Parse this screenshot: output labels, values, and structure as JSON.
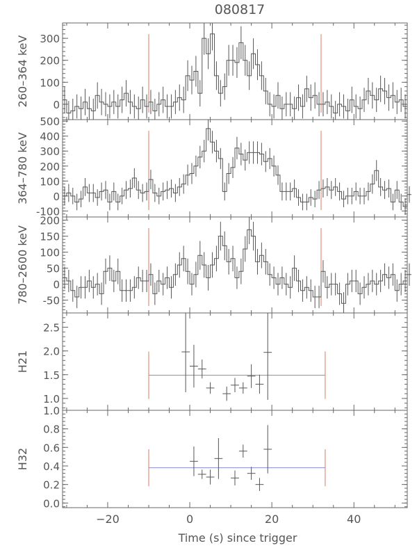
{
  "chart_data": {
    "title": "080817",
    "xlabel": "Time (s) since trigger",
    "xlim": [
      -31,
      53
    ],
    "xticks": [
      -20,
      0,
      20,
      40
    ],
    "panels": [
      {
        "id": "p1",
        "type": "step",
        "ylabel": "260–364 keV",
        "ylim": [
          -70,
          370
        ],
        "yticks": [
          0,
          100,
          200,
          300
        ],
        "t0": -31,
        "dt": 1,
        "values": [
          20,
          -40,
          -30,
          -10,
          -20,
          10,
          -20,
          -30,
          40,
          10,
          0,
          -10,
          10,
          -10,
          20,
          50,
          10,
          -10,
          -20,
          20,
          -10,
          10,
          -30,
          0,
          20,
          -10,
          -10,
          10,
          30,
          20,
          130,
          110,
          150,
          50,
          300,
          230,
          320,
          130,
          50,
          80,
          200,
          200,
          190,
          280,
          200,
          130,
          230,
          180,
          130,
          60,
          0,
          -10,
          40,
          -20,
          0,
          0,
          -20,
          30,
          -10,
          70,
          30,
          40,
          0,
          0,
          10,
          -10,
          -40,
          0,
          -10,
          -30,
          20,
          -10,
          -20,
          20,
          60,
          40,
          20,
          70,
          60,
          30,
          40,
          10,
          20,
          -10
        ],
        "errors": [
          60,
          55,
          55,
          55,
          55,
          60,
          55,
          55,
          60,
          60,
          55,
          55,
          55,
          55,
          60,
          60,
          55,
          55,
          55,
          60,
          55,
          55,
          55,
          55,
          60,
          55,
          55,
          55,
          60,
          60,
          70,
          65,
          70,
          60,
          75,
          70,
          75,
          65,
          60,
          60,
          70,
          70,
          70,
          75,
          70,
          65,
          70,
          70,
          65,
          60,
          55,
          55,
          60,
          55,
          55,
          55,
          55,
          60,
          55,
          60,
          60,
          60,
          55,
          55,
          55,
          55,
          55,
          55,
          55,
          55,
          60,
          55,
          55,
          55,
          60,
          60,
          55,
          60,
          60,
          60,
          60,
          55,
          55,
          55
        ],
        "markers": [
          -10,
          32
        ]
      },
      {
        "id": "p2",
        "type": "step",
        "ylabel": "364–780 keV",
        "ylim": [
          -140,
          510
        ],
        "yticks": [
          -100,
          0,
          100,
          200,
          300,
          400,
          500
        ],
        "t0": -31,
        "dt": 1,
        "values": [
          0,
          20,
          0,
          -40,
          -20,
          60,
          20,
          20,
          -10,
          30,
          40,
          -40,
          30,
          -40,
          0,
          40,
          50,
          120,
          40,
          20,
          30,
          110,
          20,
          0,
          30,
          40,
          50,
          20,
          60,
          80,
          140,
          150,
          200,
          260,
          300,
          450,
          360,
          300,
          250,
          30,
          150,
          190,
          320,
          280,
          240,
          290,
          290,
          290,
          280,
          230,
          250,
          200,
          140,
          30,
          30,
          30,
          50,
          -10,
          -40,
          -40,
          -10,
          -20,
          40,
          50,
          60,
          40,
          60,
          30,
          -20,
          0,
          0,
          30,
          0,
          0,
          30,
          80,
          170,
          60,
          40,
          50,
          -40,
          40,
          -40,
          -70,
          10
        ],
        "errors": [
          60,
          60,
          55,
          55,
          55,
          60,
          60,
          60,
          55,
          60,
          60,
          55,
          60,
          55,
          55,
          60,
          60,
          65,
          60,
          60,
          60,
          65,
          60,
          55,
          60,
          60,
          60,
          60,
          60,
          65,
          70,
          70,
          70,
          75,
          75,
          80,
          75,
          75,
          70,
          60,
          70,
          70,
          75,
          75,
          70,
          75,
          75,
          75,
          75,
          70,
          70,
          70,
          65,
          60,
          60,
          60,
          60,
          55,
          55,
          55,
          55,
          55,
          60,
          60,
          60,
          60,
          60,
          60,
          55,
          55,
          55,
          60,
          55,
          55,
          60,
          65,
          70,
          60,
          60,
          60,
          55,
          60,
          55,
          55,
          55
        ],
        "markers": [
          -10,
          32
        ]
      },
      {
        "id": "p3",
        "type": "step",
        "ylabel": "780–2600 keV",
        "ylim": [
          -90,
          210
        ],
        "yticks": [
          -50,
          0,
          50,
          100,
          150,
          200
        ],
        "t0": -31,
        "dt": 1,
        "values": [
          20,
          10,
          -20,
          -40,
          -10,
          -10,
          10,
          -10,
          0,
          -30,
          40,
          50,
          10,
          40,
          -20,
          -20,
          -20,
          -10,
          20,
          10,
          10,
          30,
          -30,
          10,
          0,
          20,
          -10,
          30,
          60,
          80,
          40,
          0,
          30,
          90,
          60,
          20,
          60,
          80,
          150,
          120,
          70,
          80,
          20,
          40,
          110,
          170,
          150,
          70,
          90,
          70,
          30,
          20,
          0,
          20,
          0,
          -10,
          50,
          10,
          -20,
          -10,
          -20,
          -40,
          -40,
          40,
          -10,
          0,
          0,
          -30,
          -60,
          0,
          10,
          10,
          -30,
          -10,
          0,
          10,
          0,
          10,
          30,
          20,
          30,
          -20,
          0,
          10,
          30
        ],
        "errors": [
          35,
          35,
          35,
          35,
          35,
          35,
          35,
          35,
          35,
          35,
          40,
          40,
          35,
          40,
          35,
          35,
          35,
          35,
          35,
          35,
          35,
          35,
          35,
          35,
          35,
          35,
          35,
          35,
          40,
          40,
          40,
          35,
          40,
          45,
          40,
          40,
          40,
          40,
          45,
          45,
          40,
          40,
          35,
          40,
          40,
          45,
          45,
          40,
          40,
          40,
          35,
          35,
          35,
          35,
          35,
          35,
          40,
          35,
          35,
          35,
          35,
          35,
          35,
          35,
          35,
          35,
          35,
          35,
          35,
          35,
          35,
          35,
          35,
          35,
          35,
          35,
          35,
          35,
          35,
          35,
          35,
          35,
          35,
          35,
          35
        ],
        "markers": [
          -10,
          32
        ]
      },
      {
        "id": "p4",
        "type": "points",
        "ylabel": "H21",
        "ylim": [
          0.75,
          2.8
        ],
        "yticks": [
          1.0,
          1.5,
          2.0,
          2.5
        ],
        "yticklabels": [
          "1.0",
          "1.5",
          "2.0",
          "2.5"
        ],
        "points": [
          {
            "x": -1,
            "y": 1.98,
            "xerr": 1,
            "yerr": 0.85
          },
          {
            "x": 1,
            "y": 1.68,
            "xerr": 1,
            "yerr": 0.45
          },
          {
            "x": 3,
            "y": 1.62,
            "xerr": 1,
            "yerr": 0.2
          },
          {
            "x": 5,
            "y": 1.22,
            "xerr": 1,
            "yerr": 0.12
          },
          {
            "x": 9,
            "y": 1.1,
            "xerr": 1,
            "yerr": 0.15
          },
          {
            "x": 11,
            "y": 1.28,
            "xerr": 1,
            "yerr": 0.15
          },
          {
            "x": 13,
            "y": 1.22,
            "xerr": 1,
            "yerr": 0.12
          },
          {
            "x": 15,
            "y": 1.47,
            "xerr": 1,
            "yerr": 0.25
          },
          {
            "x": 17,
            "y": 1.3,
            "xerr": 1,
            "yerr": 0.2
          },
          {
            "x": 19,
            "y": 1.97,
            "xerr": 1,
            "yerr": 1.0
          }
        ],
        "mean": {
          "x0": -10,
          "x1": 33,
          "y": 1.49,
          "yerr": 0.5
        }
      },
      {
        "id": "p5",
        "type": "points",
        "ylabel": "H32",
        "ylim": [
          -0.05,
          1.0
        ],
        "yticks": [
          0.0,
          0.2,
          0.4,
          0.6,
          0.8,
          1.0
        ],
        "yticklabels": [
          "0.0",
          "0.2",
          "0.4",
          "0.6",
          "0.8",
          "1.0"
        ],
        "points": [
          {
            "x": 1,
            "y": 0.45,
            "xerr": 1,
            "yerr": 0.16
          },
          {
            "x": 3,
            "y": 0.31,
            "xerr": 1,
            "yerr": 0.05
          },
          {
            "x": 5,
            "y": 0.28,
            "xerr": 1,
            "yerr": 0.08
          },
          {
            "x": 7,
            "y": 0.48,
            "xerr": 1,
            "yerr": 0.22
          },
          {
            "x": 11,
            "y": 0.27,
            "xerr": 1,
            "yerr": 0.08
          },
          {
            "x": 13,
            "y": 0.56,
            "xerr": 1,
            "yerr": 0.07
          },
          {
            "x": 15,
            "y": 0.32,
            "xerr": 1,
            "yerr": 0.07
          },
          {
            "x": 17,
            "y": 0.2,
            "xerr": 1,
            "yerr": 0.07
          },
          {
            "x": 19,
            "y": 0.58,
            "xerr": 1,
            "yerr": 0.26
          }
        ],
        "mean": {
          "x0": -10,
          "x1": 33,
          "y": 0.38,
          "yerr": 0.2
        }
      }
    ],
    "colors": {
      "data": "#555555",
      "marker": "#e07a60",
      "mean": "#8a8ad8",
      "axis": "#666666"
    }
  }
}
